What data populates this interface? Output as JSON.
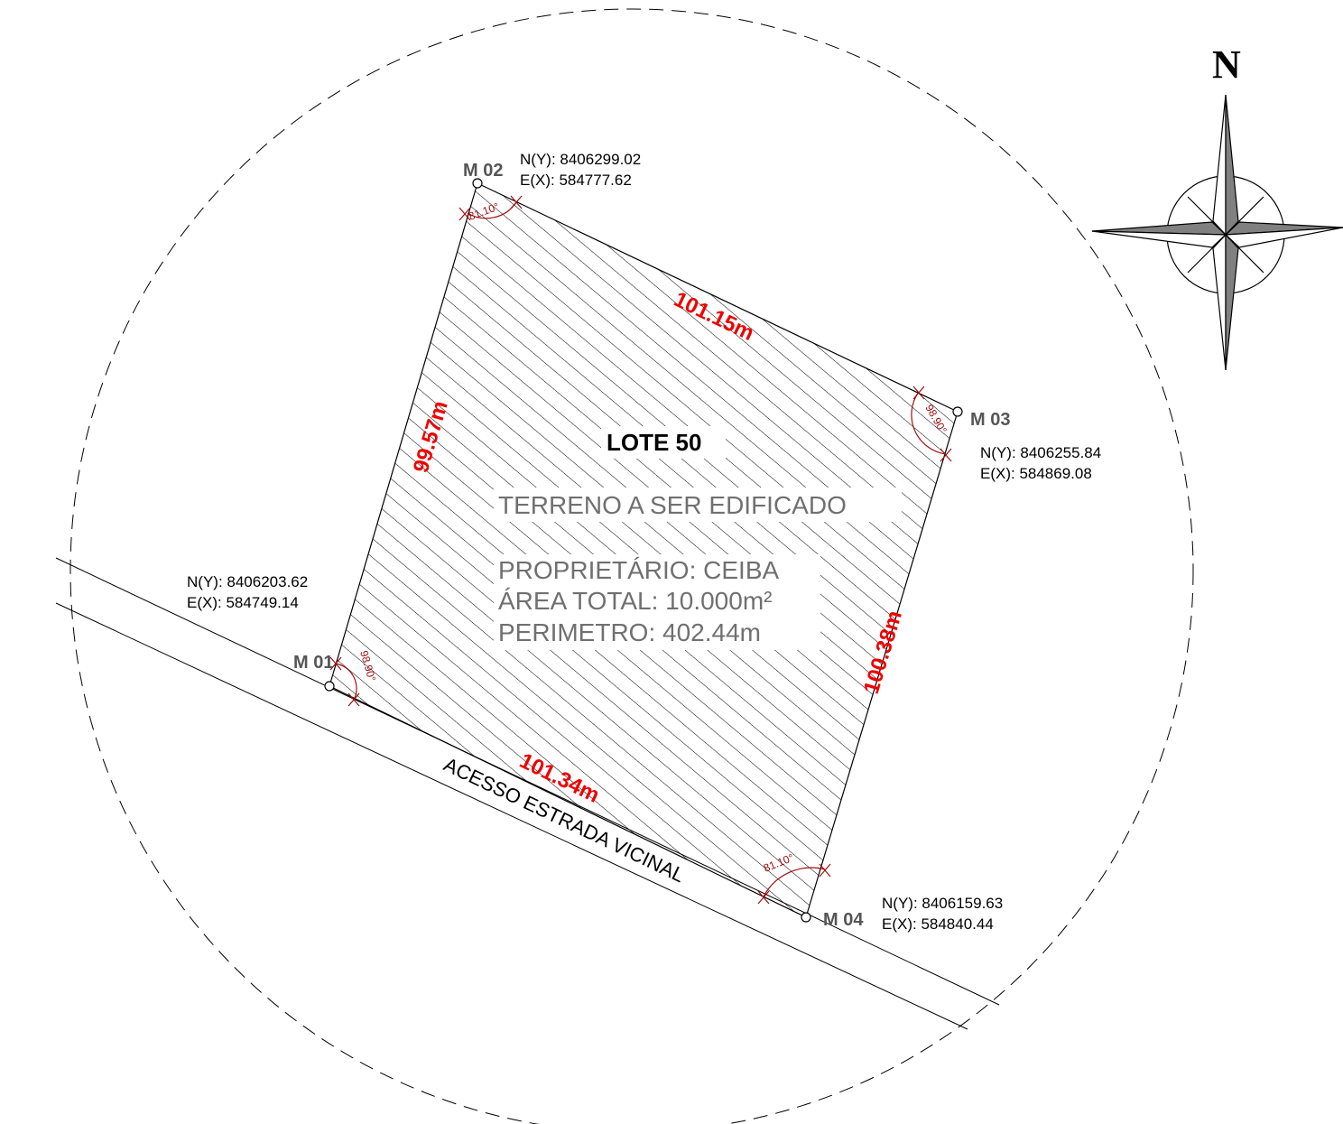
{
  "lot": {
    "title": "LOTE 50",
    "description": "TERRENO A SER EDIFICADO",
    "owner": "PROPRIETÁRIO: CEIBA",
    "area": "ÁREA TOTAL: 10.000m²",
    "perimeter": "PERIMETRO: 402.44m"
  },
  "road": {
    "label": "ACESSO ESTRADA VICINAL"
  },
  "north_arrow": {
    "label": "N",
    "icon": "compass-rose-icon"
  },
  "markers": [
    {
      "id": "M 01",
      "north": "N(Y): 8406203.62",
      "east": "E(X): 584749.14",
      "angle": "98.90°"
    },
    {
      "id": "M 02",
      "north": "N(Y): 8406299.02",
      "east": "E(X): 584777.62",
      "angle": "81.10°"
    },
    {
      "id": "M 03",
      "north": "N(Y): 8406255.84",
      "east": "E(X): 584869.08",
      "angle": "98.90°"
    },
    {
      "id": "M 04",
      "north": "N(Y): 8406159.63",
      "east": "E(X): 584840.44",
      "angle": "81.10°"
    }
  ],
  "sides": {
    "m01_m02": "99.57m",
    "m02_m03": "101.15m",
    "m03_m04": "100.38m",
    "m04_m01": "101.34m"
  },
  "colors": {
    "dimension_text": "#ee0000",
    "angle_marks": "#a01010",
    "info_text": "#707070",
    "marker_text": "#555555"
  }
}
